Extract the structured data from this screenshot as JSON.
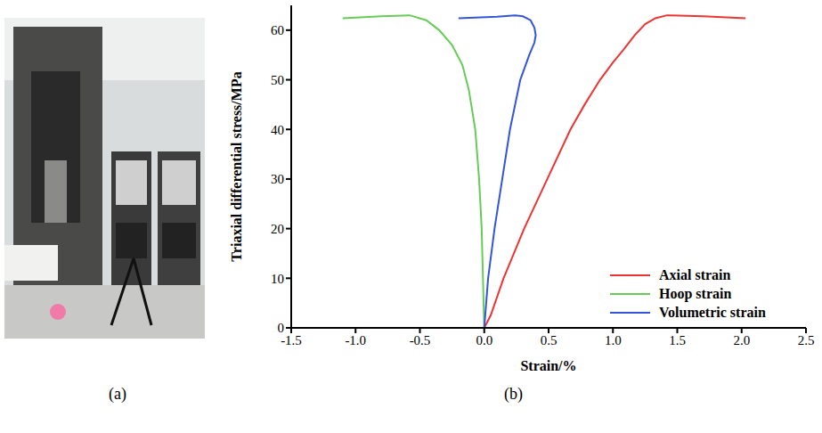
{
  "panel_labels": [
    "(a)",
    "(b)"
  ],
  "chart_data": {
    "type": "line",
    "x_label": "Strain/%",
    "y_label": "Triaxial differential stress/MPa",
    "xlim": [
      -1.5,
      2.5
    ],
    "ylim": [
      0,
      65
    ],
    "xticks": [
      -1.5,
      {
        "value": -1,
        "label": "-1.0"
      },
      -0.5,
      {
        "value": 0,
        "label": "0.0"
      },
      0.5,
      {
        "value": 1,
        "label": "1.0"
      },
      1.5,
      {
        "value": 2,
        "label": "2.0"
      },
      2.5
    ],
    "yticks": [
      0,
      10,
      20,
      30,
      40,
      50,
      60
    ],
    "grid": false,
    "legend": "bottom-right",
    "series": [
      {
        "name": "Axial strain",
        "color": "#ee3333",
        "x": [
          0,
          0.05,
          0.15,
          0.31,
          0.49,
          0.67,
          0.78,
          0.9,
          1.0,
          1.08,
          1.17,
          1.25,
          1.33,
          1.42,
          1.7,
          2.03
        ],
        "values": [
          0,
          2.5,
          10,
          20,
          30,
          40,
          45,
          50,
          53.5,
          56,
          59,
          61.2,
          62.4,
          63,
          62.8,
          62.4
        ]
      },
      {
        "name": "Hoop strain",
        "color": "#66cc55",
        "x": [
          0,
          -0.01,
          -0.02,
          -0.04,
          -0.07,
          -0.12,
          -0.17,
          -0.25,
          -0.35,
          -0.45,
          -0.58,
          -0.8,
          -1.1
        ],
        "values": [
          0,
          10,
          20,
          30,
          40,
          48,
          53,
          57,
          60,
          62,
          63,
          62.8,
          62.4
        ]
      },
      {
        "name": "Volumetric strain",
        "color": "#3355dd",
        "x": [
          0,
          0.03,
          0.08,
          0.14,
          0.2,
          0.28,
          0.35,
          0.39,
          0.4,
          0.39,
          0.36,
          0.3,
          0.24,
          0.1,
          -0.2
        ],
        "values": [
          0,
          10,
          20,
          30,
          40,
          50,
          55,
          57.5,
          59,
          60.5,
          62,
          62.8,
          63,
          62.7,
          62.4
        ]
      }
    ]
  }
}
